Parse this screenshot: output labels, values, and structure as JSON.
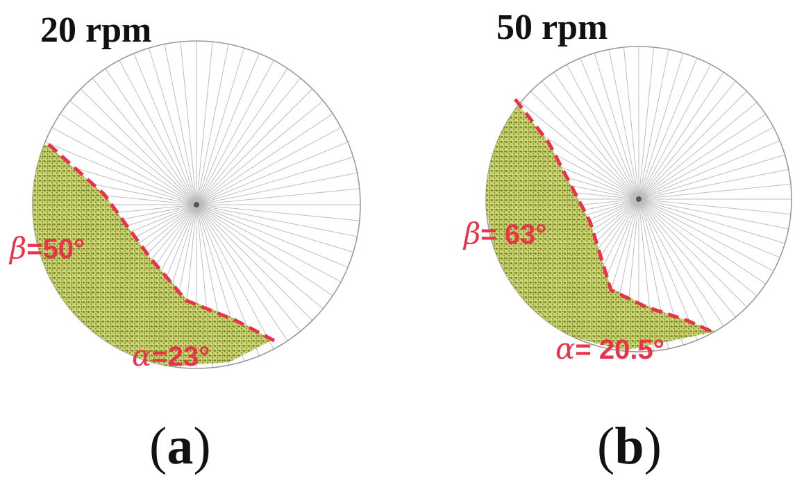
{
  "panels": [
    {
      "id": "a",
      "speed_label": "20 rpm",
      "caption_letter": "a",
      "beta_symbol": "β",
      "beta_value": "=50°",
      "alpha_symbol": "α",
      "alpha_value": "=23°"
    },
    {
      "id": "b",
      "speed_label": "50 rpm",
      "caption_letter": "b",
      "beta_symbol": "β",
      "beta_value": "= 63°",
      "alpha_symbol": "α",
      "alpha_value": "= 20.5°"
    }
  ],
  "colors": {
    "particles": "#c9d36b",
    "particles_dark": "#6f7a2c",
    "annotation": "#e8334a",
    "spokes": "#bdbdbd",
    "rim": "#9a9a9a"
  }
}
